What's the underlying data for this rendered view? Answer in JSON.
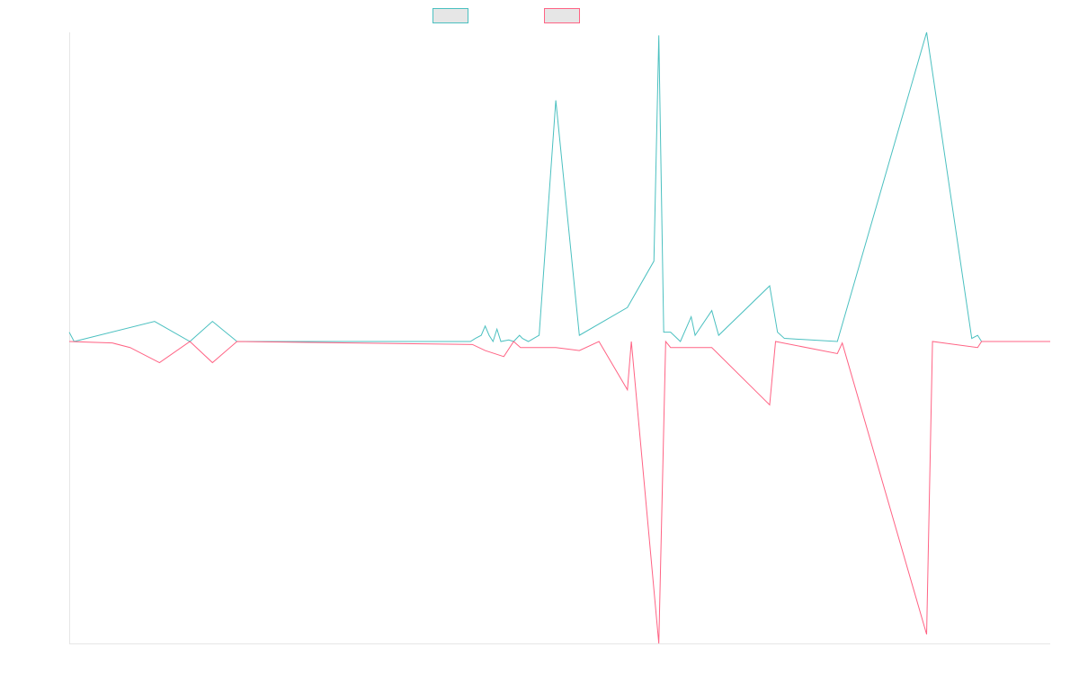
{
  "chart_data": {
    "type": "line",
    "title": "",
    "xlabel": "",
    "ylabel": "",
    "grid": false,
    "legend_position": "top-center",
    "ylim": [
      -1,
      1
    ],
    "series": [
      {
        "color": "#4bc0c0",
        "fill_color": "#e6e6e6",
        "points": [
          [
            0,
            0.03
          ],
          [
            0.5,
            0.0
          ],
          [
            8.7,
            0.065
          ],
          [
            12.3,
            0
          ],
          [
            14.6,
            0.065
          ],
          [
            17.1,
            0
          ],
          [
            40.9,
            0
          ],
          [
            41.4,
            0.01
          ],
          [
            42.0,
            0.02
          ],
          [
            42.4,
            0.05
          ],
          [
            42.8,
            0.02
          ],
          [
            43.2,
            0.0
          ],
          [
            43.6,
            0.04
          ],
          [
            44.0,
            0.0
          ],
          [
            44.8,
            0.005
          ],
          [
            45.3,
            0
          ],
          [
            45.9,
            0.02
          ],
          [
            46.2,
            0.01
          ],
          [
            46.8,
            0
          ],
          [
            47.9,
            0.02
          ],
          [
            49.6,
            0.78
          ],
          [
            52.0,
            0.02
          ],
          [
            56.9,
            0.11
          ],
          [
            59.6,
            0.26
          ],
          [
            60.1,
            0.99
          ],
          [
            60.6,
            0.03
          ],
          [
            61.3,
            0.03
          ],
          [
            62.3,
            0.0
          ],
          [
            63.4,
            0.08
          ],
          [
            63.8,
            0.02
          ],
          [
            65.5,
            0.1
          ],
          [
            66.2,
            0.02
          ],
          [
            71.4,
            0.18
          ],
          [
            72.2,
            0.03
          ],
          [
            72.9,
            0.01
          ],
          [
            78.3,
            0.0
          ],
          [
            87.4,
            1.0
          ],
          [
            92.0,
            0.01
          ],
          [
            92.6,
            0.02
          ],
          [
            93.0,
            0.0
          ],
          [
            100,
            0
          ]
        ]
      },
      {
        "color": "#ff6384",
        "fill_color": "#e6e6e6",
        "points": [
          [
            0,
            0
          ],
          [
            4.4,
            -0.005
          ],
          [
            6.2,
            -0.02
          ],
          [
            9.2,
            -0.07
          ],
          [
            12.3,
            0
          ],
          [
            14.6,
            -0.07
          ],
          [
            17.1,
            0
          ],
          [
            41.1,
            -0.01
          ],
          [
            42.4,
            -0.03
          ],
          [
            44.3,
            -0.05
          ],
          [
            45.3,
            0
          ],
          [
            46.0,
            -0.02
          ],
          [
            47.9,
            -0.02
          ],
          [
            49.6,
            -0.02
          ],
          [
            52.0,
            -0.03
          ],
          [
            54.0,
            0
          ],
          [
            56.9,
            -0.16
          ],
          [
            57.3,
            0
          ],
          [
            60.1,
            -1.0
          ],
          [
            60.8,
            0
          ],
          [
            61.3,
            -0.02
          ],
          [
            63.4,
            -0.02
          ],
          [
            65.5,
            -0.02
          ],
          [
            71.4,
            -0.21
          ],
          [
            72.0,
            0
          ],
          [
            78.3,
            -0.04
          ],
          [
            78.8,
            -0.005
          ],
          [
            87.4,
            -0.97
          ],
          [
            88.0,
            0
          ],
          [
            92.6,
            -0.02
          ],
          [
            93.0,
            0
          ],
          [
            100,
            0
          ]
        ]
      }
    ]
  }
}
